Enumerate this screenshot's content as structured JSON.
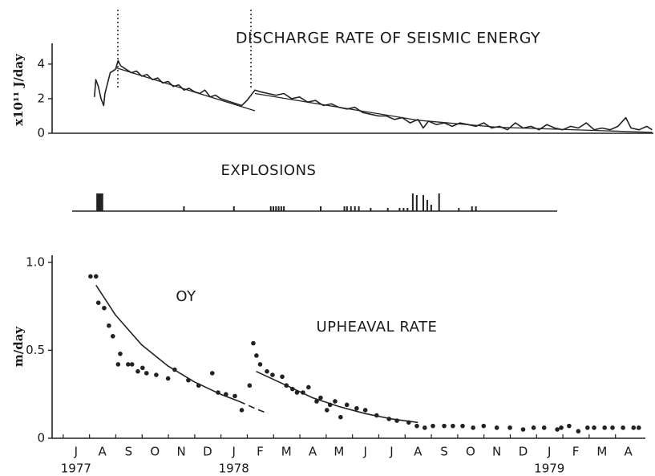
{
  "chart_data": [
    {
      "type": "line",
      "title": "DISCHARGE RATE OF SEISMIC ENERGY",
      "y_label": "x10¹¹ J/day",
      "xlim": [
        -0.91,
        21.95
      ],
      "ylim": [
        0,
        5.2
      ],
      "yticks": [
        0,
        2,
        4
      ],
      "event_lines": [
        1.59,
        6.65
      ],
      "series": [
        {
          "color": "#222222",
          "style": "solid",
          "x": [
            0.7,
            0.75,
            0.85,
            0.95,
            1.05,
            1.1,
            1.3,
            1.5,
            1.6,
            1.7,
            1.9,
            2.1,
            2.3,
            2.5,
            2.7,
            2.9,
            3.1,
            3.3,
            3.5,
            3.7,
            3.9,
            4.1,
            4.3,
            4.5,
            4.7,
            4.9,
            5.1,
            5.3,
            5.5,
            5.7,
            5.9,
            6.1,
            6.3,
            6.5,
            6.7,
            6.8,
            7.0,
            7.3,
            7.6,
            7.9,
            8.2,
            8.5,
            8.8,
            9.1,
            9.4,
            9.7,
            10.0,
            10.3,
            10.6,
            10.9,
            11.2,
            11.5,
            11.8,
            12.1,
            12.4,
            12.7,
            13.0,
            13.2,
            13.4,
            13.7,
            14.0,
            14.3,
            14.6,
            14.9,
            15.2,
            15.5,
            15.8,
            16.1,
            16.4,
            16.7,
            17.0,
            17.3,
            17.6,
            17.9,
            18.2,
            18.5,
            18.8,
            19.1,
            19.4,
            19.7,
            20.0,
            20.3,
            20.6,
            20.9,
            21.1,
            21.4,
            21.7,
            21.9
          ],
          "values": [
            2.1,
            3.1,
            2.7,
            2.0,
            1.6,
            2.3,
            3.5,
            3.7,
            4.2,
            3.9,
            3.7,
            3.5,
            3.6,
            3.3,
            3.4,
            3.1,
            3.2,
            2.9,
            3.0,
            2.7,
            2.8,
            2.5,
            2.6,
            2.4,
            2.3,
            2.5,
            2.1,
            2.2,
            2.0,
            1.9,
            1.8,
            1.7,
            1.6,
            1.9,
            2.3,
            2.5,
            2.4,
            2.3,
            2.2,
            2.3,
            2.0,
            2.1,
            1.8,
            1.9,
            1.6,
            1.7,
            1.5,
            1.4,
            1.5,
            1.2,
            1.1,
            1.0,
            1.0,
            0.8,
            0.9,
            0.6,
            0.8,
            0.3,
            0.7,
            0.5,
            0.6,
            0.4,
            0.6,
            0.5,
            0.4,
            0.6,
            0.3,
            0.4,
            0.2,
            0.6,
            0.3,
            0.4,
            0.2,
            0.5,
            0.3,
            0.2,
            0.4,
            0.3,
            0.6,
            0.2,
            0.3,
            0.2,
            0.4,
            0.9,
            0.3,
            0.2,
            0.4,
            0.2
          ]
        },
        {
          "color": "#222222",
          "style": "trend",
          "x": [
            1.5,
            6.8
          ],
          "values": [
            3.8,
            1.3
          ]
        },
        {
          "color": "#222222",
          "style": "trend",
          "x": [
            6.8,
            13.0,
            16.0,
            21.9
          ],
          "values": [
            2.3,
            0.75,
            0.35,
            0.05
          ]
        }
      ]
    },
    {
      "type": "bar",
      "title": "EXPLOSIONS",
      "xlim": [
        -0.15,
        18.29
      ],
      "ylim": [
        0,
        25
      ],
      "color": "#222222",
      "x": [
        0.8,
        0.85,
        0.9,
        0.95,
        1.0,
        4.1,
        6.0,
        7.4,
        7.5,
        7.6,
        7.7,
        7.8,
        7.9,
        9.3,
        10.2,
        10.3,
        10.45,
        10.6,
        10.75,
        11.2,
        11.85,
        12.3,
        12.45,
        12.6,
        12.8,
        12.95,
        13.2,
        13.35,
        13.5,
        13.8,
        14.55,
        15.05,
        15.2
      ],
      "values": [
        22,
        22,
        22,
        22,
        22,
        6,
        6,
        6,
        6,
        6,
        6,
        6,
        6,
        6,
        6,
        6,
        6,
        6,
        6,
        4,
        4,
        4,
        4,
        4,
        22,
        20,
        20,
        14,
        8,
        22,
        4,
        6,
        6
      ]
    },
    {
      "type": "scatter",
      "y_label": "m/day",
      "annotations": [
        "OY",
        "UPHEAVAL RATE"
      ],
      "xlim": [
        -0.91,
        21.65
      ],
      "ylim": [
        0,
        1.04
      ],
      "yticks": [
        0,
        0.5,
        {
          "value": 1,
          "label": "1.0"
        }
      ],
      "xticks": [
        {
          "value": 0,
          "label": "J"
        },
        {
          "value": 1,
          "label": "A"
        },
        {
          "value": 2,
          "label": "S"
        },
        {
          "value": 3,
          "label": "O"
        },
        {
          "value": 4,
          "label": "N"
        },
        {
          "value": 5,
          "label": "D"
        },
        {
          "value": 6,
          "label": "J"
        },
        {
          "value": 7,
          "label": "F"
        },
        {
          "value": 8,
          "label": "M"
        },
        {
          "value": 9,
          "label": "A"
        },
        {
          "value": 10,
          "label": "M"
        },
        {
          "value": 11,
          "label": "J"
        },
        {
          "value": 12,
          "label": "J"
        },
        {
          "value": 13,
          "label": "A"
        },
        {
          "value": 14,
          "label": "S"
        },
        {
          "value": 15,
          "label": "O"
        },
        {
          "value": 16,
          "label": "N"
        },
        {
          "value": 17,
          "label": "D"
        },
        {
          "value": 18,
          "label": "J"
        },
        {
          "value": 19,
          "label": "F"
        },
        {
          "value": 20,
          "label": "M"
        },
        {
          "value": 21,
          "label": "A"
        }
      ],
      "year_labels": [
        "1977",
        null,
        null,
        null,
        null,
        null,
        "1978",
        null,
        null,
        null,
        null,
        null,
        null,
        null,
        null,
        null,
        null,
        null,
        "1979",
        null,
        null,
        null
      ],
      "series": [
        {
          "color": "#222222",
          "style": "points",
          "x": [
            0.55,
            0.76,
            0.85,
            1.07,
            1.25,
            1.4,
            1.68,
            1.6,
            1.98,
            2.13,
            2.35,
            2.53,
            2.68,
            3.05,
            3.5,
            3.75,
            4.27,
            4.66,
            5.18,
            5.4,
            5.7,
            6.04,
            6.3,
            6.6,
            6.74,
            6.86,
            7.0,
            7.26,
            7.47,
            7.84,
            8.0,
            8.23,
            8.4,
            8.63,
            8.84,
            9.15,
            9.3,
            9.54,
            9.66,
            9.85,
            10.06,
            10.3,
            10.67,
            11.0,
            11.43,
            11.9,
            12.2,
            12.65,
            12.96,
            13.26,
            13.57,
            14.0,
            14.33,
            14.7,
            15.1,
            15.5,
            16.0,
            16.5,
            17.0,
            17.4,
            17.8,
            18.3,
            18.45,
            18.75,
            19.1,
            19.45,
            19.7,
            20.1,
            20.4,
            20.8,
            21.2,
            21.4
          ],
          "values": [
            0.92,
            0.92,
            0.77,
            0.74,
            0.64,
            0.58,
            0.48,
            0.42,
            0.42,
            0.42,
            0.38,
            0.4,
            0.37,
            0.36,
            0.34,
            0.39,
            0.33,
            0.3,
            0.37,
            0.26,
            0.25,
            0.24,
            0.16,
            0.3,
            0.54,
            0.47,
            0.42,
            0.38,
            0.36,
            0.35,
            0.3,
            0.28,
            0.26,
            0.26,
            0.29,
            0.21,
            0.23,
            0.16,
            0.19,
            0.21,
            0.12,
            0.19,
            0.17,
            0.16,
            0.13,
            0.11,
            0.1,
            0.09,
            0.07,
            0.06,
            0.07,
            0.07,
            0.07,
            0.07,
            0.06,
            0.07,
            0.06,
            0.06,
            0.05,
            0.06,
            0.06,
            0.05,
            0.06,
            0.07,
            0.04,
            0.06,
            0.06,
            0.06,
            0.06,
            0.06,
            0.06,
            0.06
          ]
        },
        {
          "color": "#222222",
          "style": "solid",
          "x": [
            0.76,
            1.5,
            2.5,
            3.5,
            4.5,
            5.5,
            6.2
          ],
          "values": [
            0.87,
            0.7,
            0.53,
            0.41,
            0.32,
            0.25,
            0.21
          ]
        },
        {
          "color": "#222222",
          "style": "dashed",
          "x": [
            6.2,
            6.8,
            7.3
          ],
          "values": [
            0.21,
            0.17,
            0.14
          ]
        },
        {
          "color": "#222222",
          "style": "solid",
          "x": [
            6.85,
            8,
            9,
            10,
            11,
            12,
            13
          ],
          "values": [
            0.38,
            0.3,
            0.23,
            0.18,
            0.14,
            0.11,
            0.09
          ]
        }
      ]
    }
  ]
}
